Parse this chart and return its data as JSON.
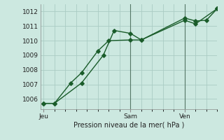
{
  "background_color": "#cce8e0",
  "plot_bg_color": "#cce8e0",
  "grid_color": "#aaccc4",
  "line_color": "#1a5c2a",
  "xlabel": "Pression niveau de la mer( hPa )",
  "yticks": [
    1006,
    1007,
    1008,
    1009,
    1010,
    1011,
    1012
  ],
  "ylim": [
    1005.3,
    1012.5
  ],
  "xtick_labels": [
    "Jeu",
    "Sam",
    "Ven"
  ],
  "xtick_positions": [
    0,
    8,
    13
  ],
  "xlim": [
    -0.3,
    16
  ],
  "line1_x": [
    0,
    1,
    2.5,
    3.5,
    5,
    6,
    8,
    9,
    13,
    14,
    16
  ],
  "line1_y": [
    1005.7,
    1005.7,
    1007.1,
    1007.8,
    1009.3,
    1010.0,
    1010.05,
    1010.05,
    1011.4,
    1011.15,
    1012.2
  ],
  "line2_x": [
    0,
    1,
    3.5,
    5.5,
    6.5,
    8,
    9,
    13,
    14,
    15,
    16
  ],
  "line2_y": [
    1005.7,
    1005.7,
    1007.1,
    1009.0,
    1010.7,
    1010.5,
    1010.05,
    1011.55,
    1011.35,
    1011.4,
    1012.2
  ],
  "vline_positions": [
    8,
    13
  ],
  "marker": "D",
  "markersize": 2.8,
  "linewidth": 1.0
}
